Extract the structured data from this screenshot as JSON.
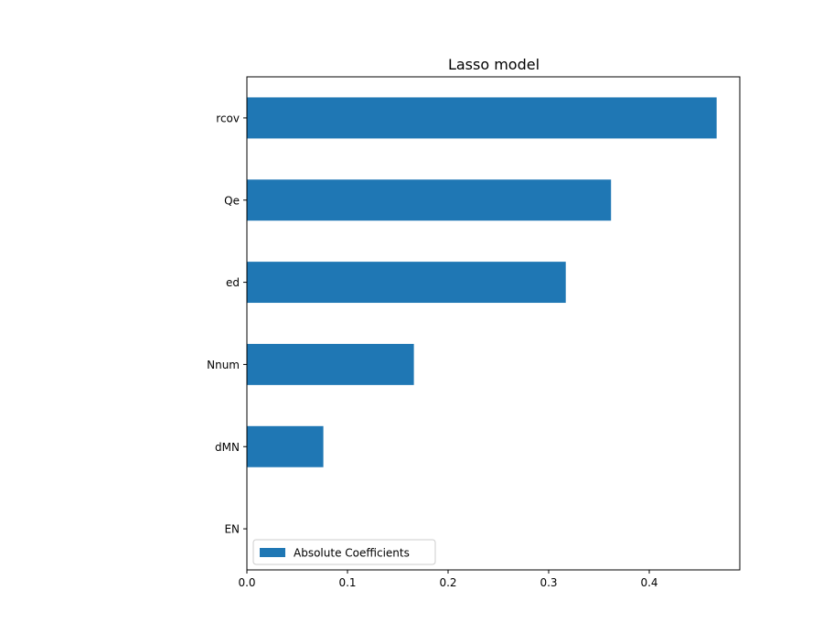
{
  "chart_data": {
    "type": "bar",
    "orientation": "horizontal",
    "title": "Lasso model",
    "xlabel": "",
    "ylabel": "",
    "categories": [
      "EN",
      "dMN",
      "Nnum",
      "ed",
      "Qe",
      "rcov"
    ],
    "series": [
      {
        "name": "Absolute Coefficients",
        "values": [
          0.0,
          0.076,
          0.166,
          0.317,
          0.362,
          0.467
        ],
        "color": "#1f77b4"
      }
    ],
    "xlim": [
      0,
      0.49
    ],
    "xticks": [
      0.0,
      0.1,
      0.2,
      0.3,
      0.4
    ],
    "xtick_labels": [
      "0.0",
      "0.1",
      "0.2",
      "0.3",
      "0.4"
    ],
    "legend_position": "lower-left",
    "grid": false
  }
}
